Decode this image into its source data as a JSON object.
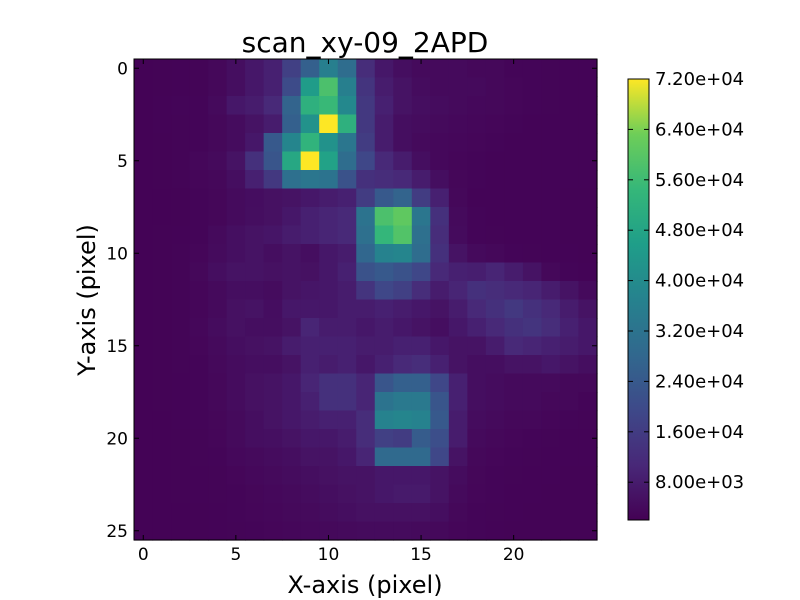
{
  "chart_data": {
    "type": "heatmap",
    "title": "scan_xy-09_2APD",
    "xlabel": "X-axis (pixel)",
    "ylabel": "Y-axis (pixel)",
    "xlim": [
      -0.5,
      24.5
    ],
    "ylim": [
      25.5,
      -0.5
    ],
    "x_ticks": [
      0,
      5,
      10,
      15,
      20
    ],
    "y_ticks": [
      0,
      5,
      10,
      15,
      20,
      25
    ],
    "colormap": "viridis",
    "vmin": 2000,
    "vmax": 72000,
    "colorbar_ticks": [
      8000,
      16000,
      24000,
      32000,
      40000,
      48000,
      56000,
      64000,
      72000
    ],
    "colorbar_tick_labels": [
      "8.00e+03",
      "1.60e+04",
      "2.40e+04",
      "3.20e+04",
      "4.00e+04",
      "4.80e+04",
      "5.60e+04",
      "6.40e+04",
      "7.20e+04"
    ],
    "grid": false,
    "values": [
      [
        2500,
        2600,
        2700,
        2800,
        3500,
        5000,
        7000,
        9000,
        17000,
        26000,
        36000,
        30000,
        12000,
        7000,
        5000,
        4000,
        4000,
        4000,
        3500,
        3500,
        3000,
        3000,
        2800,
        2700,
        2700
      ],
      [
        2500,
        2600,
        2700,
        2800,
        3500,
        5000,
        7000,
        9000,
        20000,
        45000,
        58000,
        36000,
        14000,
        8000,
        6000,
        4500,
        4000,
        4000,
        4000,
        3500,
        3200,
        3000,
        2800,
        2700,
        2700
      ],
      [
        2500,
        2700,
        2900,
        3000,
        4000,
        7000,
        8000,
        11000,
        27000,
        52000,
        55000,
        39000,
        15000,
        9000,
        6000,
        5000,
        4500,
        4000,
        3600,
        3500,
        3100,
        2900,
        2800,
        2700,
        2700
      ],
      [
        2500,
        2700,
        2800,
        3000,
        3500,
        4500,
        6000,
        8000,
        26000,
        42000,
        72000,
        52000,
        15000,
        8000,
        5000,
        4500,
        4000,
        3600,
        3400,
        3100,
        2900,
        2700,
        2700,
        2700,
        2700
      ],
      [
        2500,
        2600,
        2800,
        3000,
        3500,
        4500,
        7000,
        24000,
        38000,
        53000,
        42000,
        33000,
        16000,
        8000,
        5000,
        4000,
        3600,
        3400,
        3100,
        2900,
        2700,
        2700,
        2700,
        2700,
        2700
      ],
      [
        2500,
        2600,
        2800,
        3400,
        4000,
        6000,
        13000,
        23000,
        49000,
        72000,
        47000,
        30000,
        19000,
        11000,
        8000,
        5000,
        3600,
        3200,
        2900,
        2700,
        2700,
        2700,
        2700,
        2700,
        2700
      ],
      [
        2500,
        2600,
        2800,
        3200,
        3500,
        5000,
        9000,
        15000,
        31000,
        33000,
        32000,
        22000,
        13000,
        12000,
        11000,
        8000,
        5000,
        3300,
        2900,
        2700,
        2700,
        2700,
        2700,
        2700,
        2700
      ],
      [
        2500,
        2500,
        2600,
        3000,
        3300,
        4200,
        4800,
        5500,
        6000,
        7000,
        8000,
        9000,
        16000,
        24000,
        27000,
        16000,
        9000,
        3500,
        2700,
        2700,
        2700,
        2700,
        2700,
        2600,
        2600
      ],
      [
        2500,
        2500,
        2600,
        3000,
        3300,
        4200,
        5000,
        5500,
        7000,
        9000,
        10000,
        11000,
        32000,
        58000,
        61000,
        33000,
        13000,
        4000,
        2900,
        2700,
        2700,
        2700,
        2700,
        2600,
        2600
      ],
      [
        2500,
        2600,
        2700,
        3000,
        4000,
        5200,
        6000,
        6500,
        8000,
        9000,
        10000,
        11000,
        31000,
        54000,
        59000,
        31000,
        12000,
        4200,
        3000,
        2800,
        2700,
        2700,
        2700,
        2600,
        2600
      ],
      [
        2500,
        2600,
        2800,
        3200,
        4200,
        5200,
        6000,
        5000,
        6000,
        5000,
        7000,
        8000,
        28000,
        37000,
        38000,
        30000,
        13000,
        6000,
        4000,
        3500,
        3000,
        2800,
        2700,
        2700,
        2600
      ],
      [
        2500,
        2600,
        2800,
        3500,
        5000,
        6000,
        6000,
        5500,
        6000,
        5500,
        7000,
        9000,
        22000,
        24000,
        22000,
        19000,
        11000,
        9000,
        8500,
        10000,
        8000,
        6000,
        3500,
        2900,
        2700
      ],
      [
        2500,
        2600,
        2800,
        3200,
        4000,
        5000,
        5000,
        4500,
        6000,
        6500,
        7000,
        8000,
        14000,
        19000,
        17000,
        12000,
        8000,
        10000,
        13000,
        12000,
        11000,
        10000,
        8000,
        6000,
        4000
      ],
      [
        2500,
        2600,
        2800,
        3200,
        4000,
        5500,
        6000,
        4800,
        7000,
        7000,
        7000,
        8000,
        8000,
        9000,
        8000,
        7000,
        6000,
        8000,
        11000,
        13000,
        15000,
        13000,
        11000,
        8000,
        6000
      ],
      [
        2500,
        2600,
        2800,
        3400,
        4500,
        5500,
        5000,
        5000,
        6000,
        10000,
        8000,
        8000,
        7000,
        8000,
        7000,
        6000,
        5000,
        7000,
        9000,
        11000,
        13000,
        14000,
        12000,
        9000,
        7000
      ],
      [
        2500,
        2600,
        2800,
        3200,
        4000,
        5000,
        5500,
        6000,
        8000,
        9000,
        9000,
        9000,
        8000,
        8000,
        9000,
        9000,
        7000,
        6000,
        6000,
        8000,
        11000,
        10000,
        9000,
        8000,
        7000
      ],
      [
        2500,
        2600,
        2800,
        3000,
        3800,
        4500,
        5000,
        5000,
        6000,
        9000,
        8000,
        9000,
        7000,
        9000,
        11000,
        12000,
        9000,
        6000,
        5000,
        5000,
        6000,
        6000,
        7000,
        6000,
        5000
      ],
      [
        2500,
        2600,
        2700,
        3000,
        3500,
        4500,
        5500,
        6000,
        7000,
        10000,
        13000,
        13000,
        10000,
        23000,
        26000,
        26000,
        19000,
        9000,
        5000,
        4500,
        4000,
        4000,
        4000,
        3500,
        3500
      ],
      [
        2500,
        2600,
        2700,
        3000,
        3500,
        4500,
        5500,
        6000,
        7000,
        9000,
        13000,
        13000,
        10000,
        32000,
        34000,
        34000,
        23000,
        9000,
        5000,
        4500,
        4000,
        4000,
        3500,
        3500,
        3000
      ],
      [
        2500,
        2500,
        2700,
        2900,
        3300,
        4000,
        5000,
        6000,
        7000,
        8000,
        9000,
        9000,
        12000,
        37000,
        38000,
        37000,
        24000,
        8000,
        4500,
        4000,
        3500,
        3500,
        3200,
        3000,
        2800
      ],
      [
        2500,
        2500,
        2600,
        2800,
        3200,
        4000,
        5000,
        5200,
        6000,
        7000,
        7000,
        8000,
        12000,
        17000,
        16000,
        25000,
        21000,
        8000,
        4000,
        3500,
        3200,
        3000,
        2800,
        2700,
        2700
      ],
      [
        2500,
        2500,
        2600,
        2800,
        3000,
        3600,
        4000,
        4500,
        5000,
        6000,
        6000,
        7000,
        10000,
        29000,
        29000,
        29000,
        19000,
        6000,
        3500,
        3200,
        3000,
        2800,
        2700,
        2700,
        2700
      ],
      [
        2500,
        2500,
        2600,
        2700,
        2800,
        3200,
        3600,
        4000,
        4500,
        5000,
        5500,
        6000,
        6000,
        7000,
        7000,
        7000,
        6000,
        4500,
        3300,
        3000,
        2800,
        2700,
        2700,
        2600,
        2600
      ],
      [
        2500,
        2500,
        2600,
        2700,
        2800,
        3000,
        3300,
        3600,
        4000,
        4500,
        5000,
        5500,
        6000,
        7000,
        7500,
        7500,
        6000,
        4000,
        3200,
        2900,
        2700,
        2700,
        2600,
        2600,
        2600
      ],
      [
        2500,
        2500,
        2500,
        2600,
        2700,
        2900,
        3100,
        3400,
        3700,
        4000,
        4500,
        5000,
        5500,
        5500,
        5500,
        5500,
        5000,
        3500,
        3000,
        2800,
        2700,
        2600,
        2600,
        2600,
        2600
      ],
      [
        2500,
        2500,
        2500,
        2600,
        2700,
        2800,
        3000,
        3200,
        3400,
        3600,
        3800,
        4000,
        4200,
        4200,
        4200,
        4000,
        3800,
        3200,
        2900,
        2700,
        2600,
        2600,
        2600,
        2600,
        2600
      ]
    ]
  }
}
